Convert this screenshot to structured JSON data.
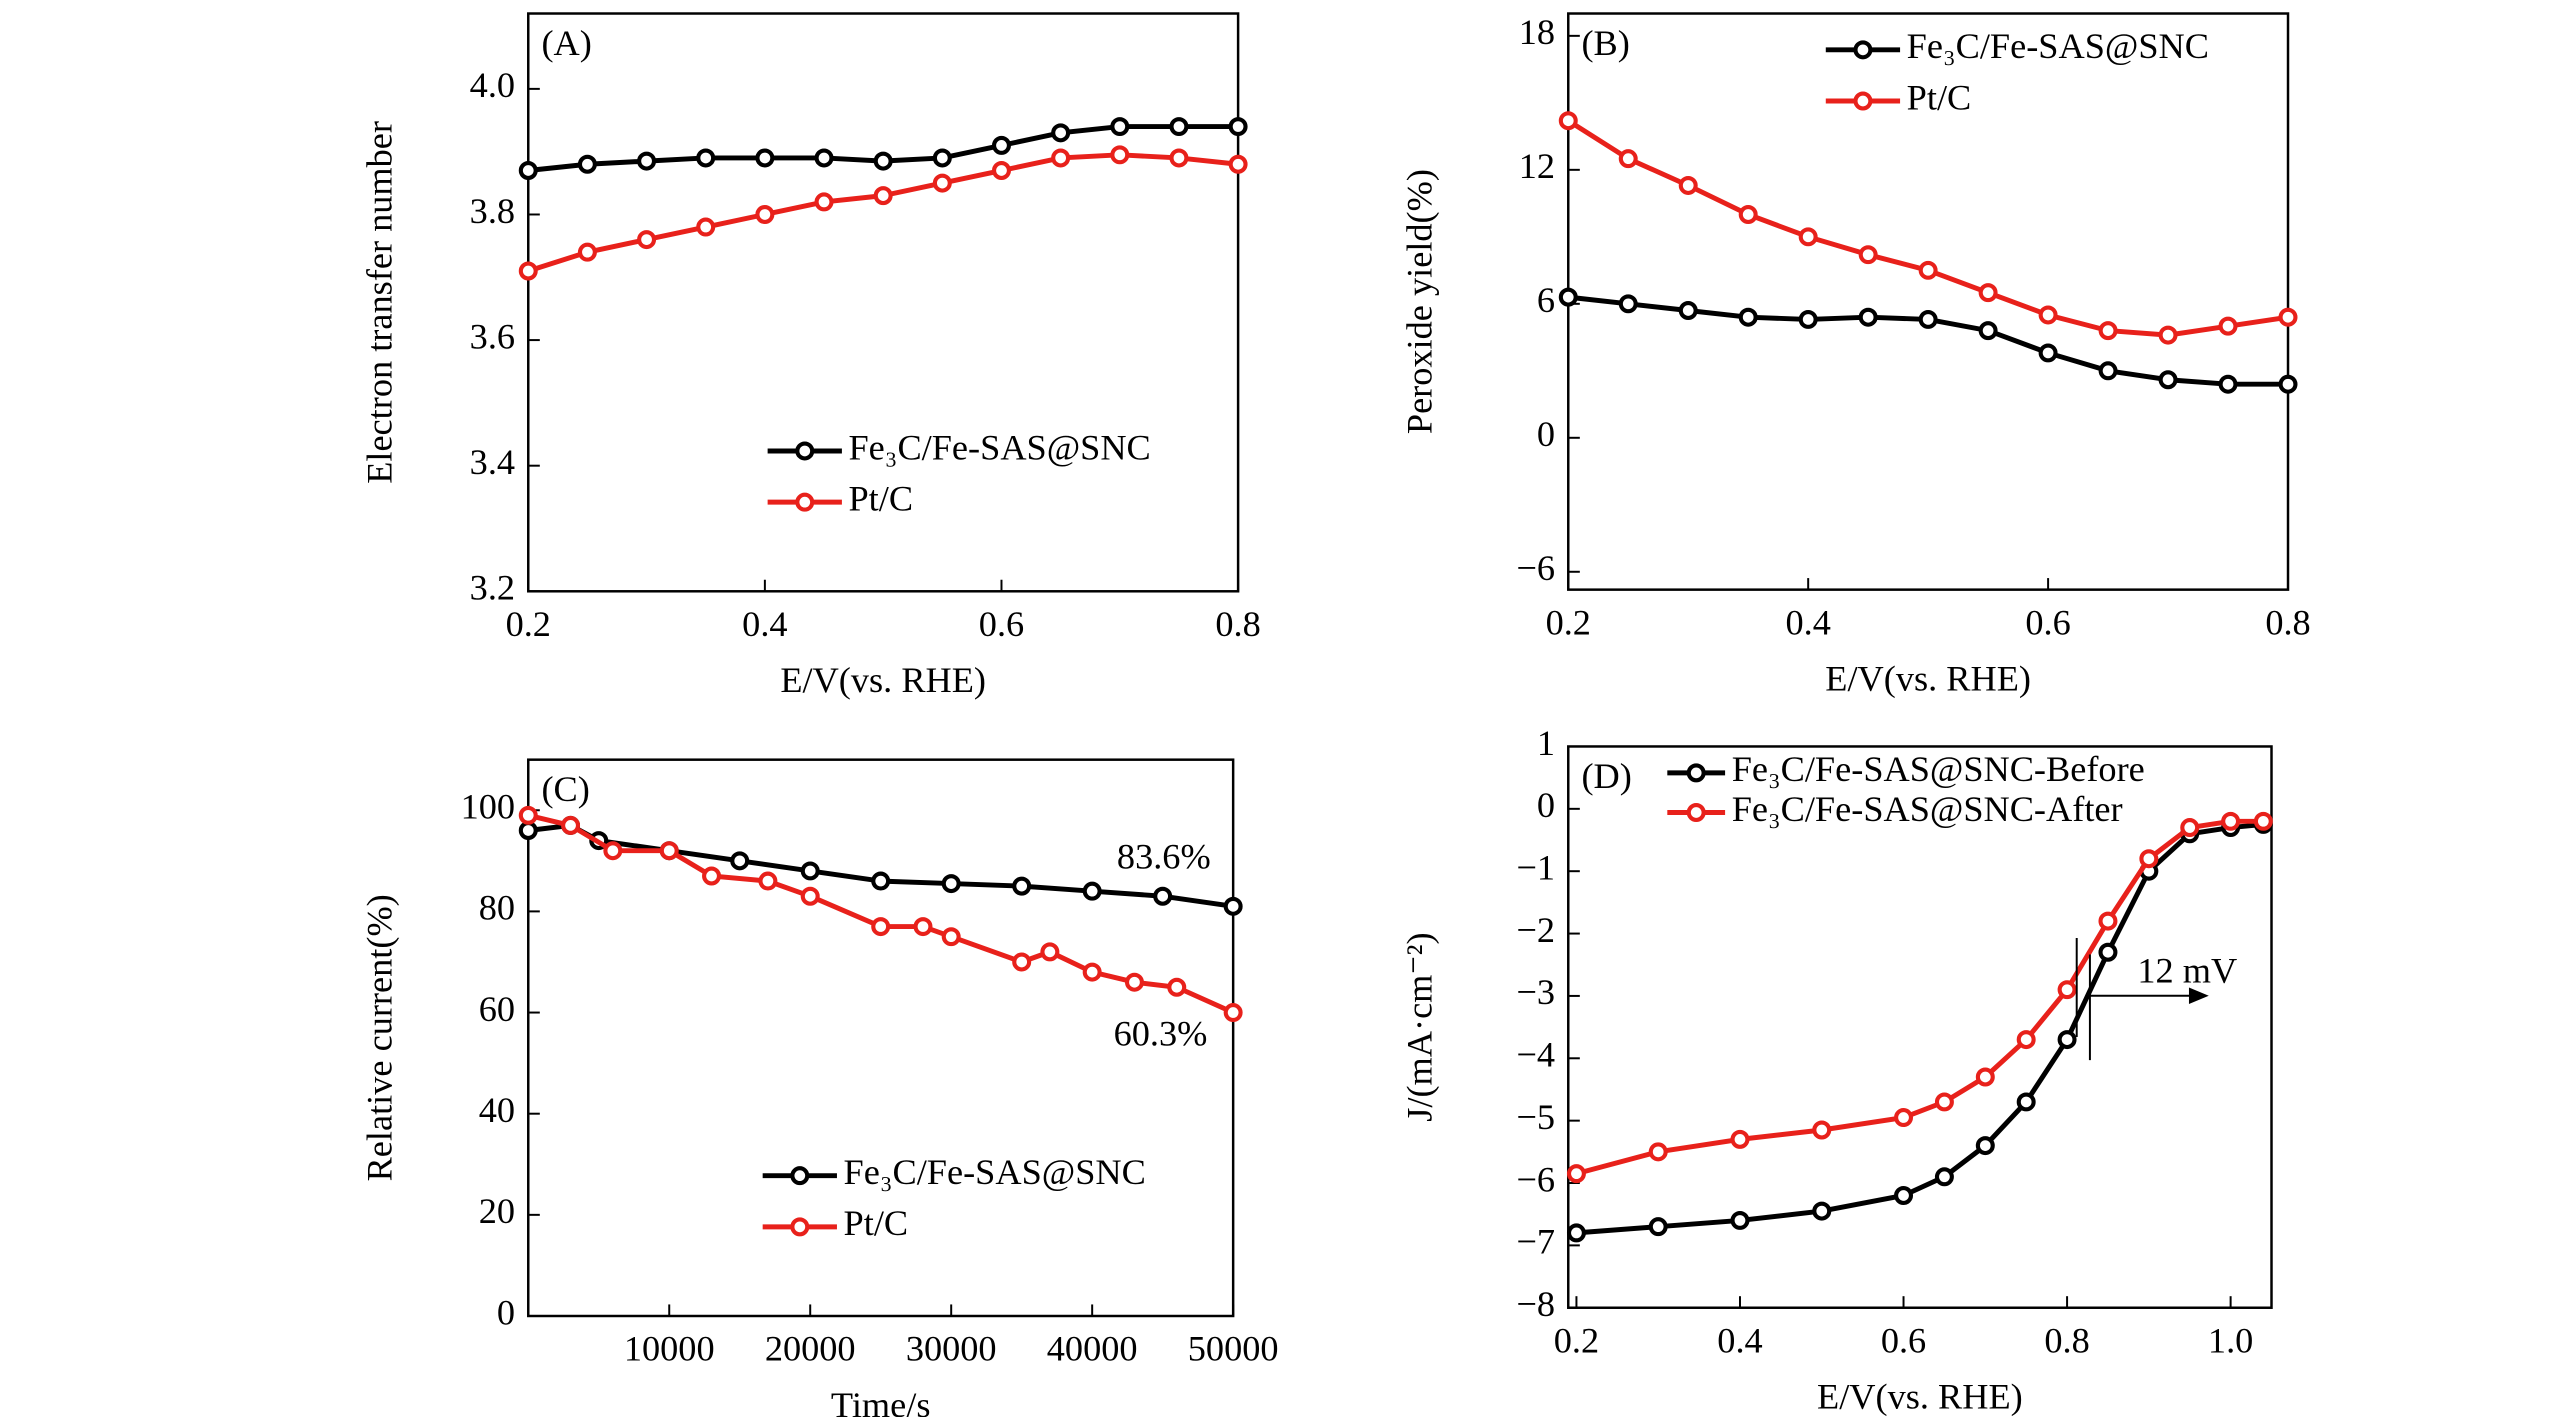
{
  "chart_data": [
    {
      "type": "line",
      "title": "(A)",
      "x_label": "E/V(vs. RHE)",
      "y_label": "Electron transfer number",
      "xlim": [
        0.2,
        0.8
      ],
      "xticks": [
        0.2,
        0.4,
        0.6,
        0.8
      ],
      "ylim": [
        3.2,
        4.12
      ],
      "yticks": [
        3.2,
        3.4,
        3.6,
        3.8,
        {
          "value": 4.0,
          "label": "4.0"
        }
      ],
      "legend": "lower right",
      "x": [
        0.2,
        0.25,
        0.3,
        0.35,
        0.4,
        0.45,
        0.5,
        0.55,
        0.6,
        0.65,
        0.7,
        0.75,
        0.8
      ],
      "series": [
        {
          "name": "Fe₃C/Fe-SAS@SNC",
          "color": "#000000",
          "values": [
            3.87,
            3.88,
            3.885,
            3.89,
            3.89,
            3.89,
            3.885,
            3.89,
            3.91,
            3.93,
            3.94,
            3.94,
            3.94
          ]
        },
        {
          "name": "Pt/C",
          "color": "#e8211b",
          "values": [
            3.71,
            3.74,
            3.76,
            3.78,
            3.8,
            3.82,
            3.83,
            3.85,
            3.87,
            3.89,
            3.895,
            3.89,
            3.88
          ]
        }
      ]
    },
    {
      "type": "line",
      "title": "(B)",
      "x_label": "E/V(vs. RHE)",
      "y_label": "Peroxide yield(%)",
      "xlim": [
        0.2,
        0.8
      ],
      "xticks": [
        0.2,
        0.4,
        0.6,
        0.8
      ],
      "ylim": [
        -6.8,
        19
      ],
      "yticks": [
        {
          "value": -6,
          "label": "−6"
        },
        0,
        6,
        12,
        18
      ],
      "legend": "upper right",
      "x": [
        0.2,
        0.25,
        0.3,
        0.35,
        0.4,
        0.45,
        0.5,
        0.55,
        0.6,
        0.65,
        0.7,
        0.75,
        0.8
      ],
      "series": [
        {
          "name": "Fe₃C/Fe-SAS@SNC",
          "color": "#000000",
          "values": [
            6.3,
            6.0,
            5.7,
            5.4,
            5.3,
            5.4,
            5.3,
            4.8,
            3.8,
            3.0,
            2.6,
            2.4,
            2.4
          ]
        },
        {
          "name": "Pt/C",
          "color": "#e8211b",
          "values": [
            14.2,
            12.5,
            11.3,
            10.0,
            9.0,
            8.2,
            7.5,
            6.5,
            5.5,
            4.8,
            4.6,
            5.0,
            5.4
          ]
        }
      ]
    },
    {
      "type": "line",
      "title": "(C)",
      "x_label": "Time/s",
      "y_label": "Relative current(%)",
      "xlim": [
        0,
        50000
      ],
      "xticks": [
        10000,
        20000,
        30000,
        40000,
        50000
      ],
      "ylim": [
        0,
        110
      ],
      "yticks": [
        0,
        20,
        40,
        60,
        80,
        100
      ],
      "legend": "lower right",
      "annotations": [
        "83.6%",
        "60.3%"
      ],
      "series": [
        {
          "name": "Fe₃C/Fe-SAS@SNC",
          "color": "#000000",
          "x": [
            0,
            3000,
            5000,
            10000,
            15000,
            20000,
            25000,
            30000,
            35000,
            40000,
            45000,
            50000
          ],
          "values": [
            96,
            97,
            94,
            92,
            90,
            88,
            86,
            85.5,
            85,
            84,
            83,
            81
          ]
        },
        {
          "name": "Pt/C",
          "color": "#e8211b",
          "x": [
            0,
            3000,
            6000,
            10000,
            13000,
            17000,
            20000,
            25000,
            28000,
            30000,
            35000,
            37000,
            40000,
            43000,
            46000,
            50000
          ],
          "values": [
            99,
            97,
            92,
            92,
            87,
            86,
            83,
            77,
            77,
            75,
            70,
            72,
            68,
            66,
            65,
            60
          ]
        }
      ]
    },
    {
      "type": "line",
      "title": "(D)",
      "x_label": "E/V(vs. RHE)",
      "y_label": "J/(mA·cm⁻²)",
      "xlim": [
        0.19,
        1.05
      ],
      "xticks": [
        0.2,
        0.4,
        0.6,
        0.8,
        {
          "value": 1.0,
          "label": "1.0"
        }
      ],
      "ylim": [
        -8,
        1
      ],
      "yticks": [
        {
          "value": -8,
          "label": "−8"
        },
        {
          "value": -7,
          "label": "−7"
        },
        {
          "value": -6,
          "label": "−6"
        },
        {
          "value": -5,
          "label": "−5"
        },
        {
          "value": -4,
          "label": "−4"
        },
        {
          "value": -3,
          "label": "−3"
        },
        {
          "value": -2,
          "label": "−2"
        },
        {
          "value": -1,
          "label": "−1"
        },
        0,
        1
      ],
      "legend": "upper left",
      "annotations": [
        "12 mV"
      ],
      "x": [
        0.2,
        0.3,
        0.4,
        0.5,
        0.6,
        0.65,
        0.7,
        0.75,
        0.8,
        0.85,
        0.9,
        0.95,
        1.0,
        1.04
      ],
      "series": [
        {
          "name": "Fe₃C/Fe-SAS@SNC-Before",
          "color": "#000000",
          "values": [
            -6.8,
            -6.7,
            -6.6,
            -6.45,
            -6.2,
            -5.9,
            -5.4,
            -4.7,
            -3.7,
            -2.3,
            -1.0,
            -0.4,
            -0.3,
            -0.25
          ]
        },
        {
          "name": "Fe₃C/Fe-SAS@SNC-After",
          "color": "#e8211b",
          "values": [
            -5.85,
            -5.5,
            -5.3,
            -5.15,
            -4.95,
            -4.7,
            -4.3,
            -3.7,
            -2.9,
            -1.8,
            -0.8,
            -0.3,
            -0.2,
            -0.2
          ]
        }
      ]
    }
  ]
}
